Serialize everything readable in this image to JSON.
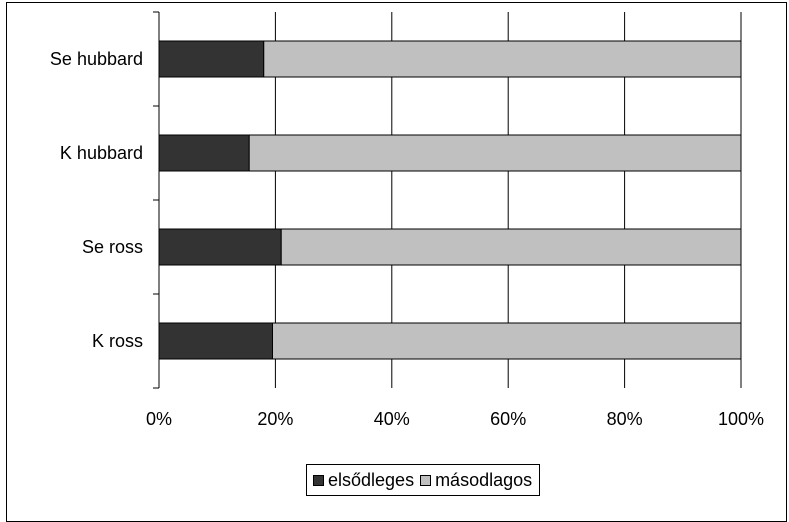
{
  "chart_data": {
    "type": "bar",
    "orientation": "horizontal",
    "stacked": "percent",
    "title": "",
    "xlabel": "",
    "ylabel": "",
    "categories": [
      "Se hubbard",
      "K hubbard",
      "Se ross",
      "K ross"
    ],
    "series": [
      {
        "name": "elsődleges",
        "color": "#333333",
        "values": [
          18,
          15.5,
          21,
          19.5
        ]
      },
      {
        "name": "másodlagos",
        "color": "#c0c0c0",
        "values": [
          82,
          84.5,
          79,
          80.5
        ]
      }
    ],
    "xlim": [
      0,
      100
    ],
    "x_tick_labels": [
      "0%",
      "20%",
      "40%",
      "60%",
      "80%",
      "100%"
    ],
    "grid": "vertical",
    "legend_position": "bottom"
  }
}
